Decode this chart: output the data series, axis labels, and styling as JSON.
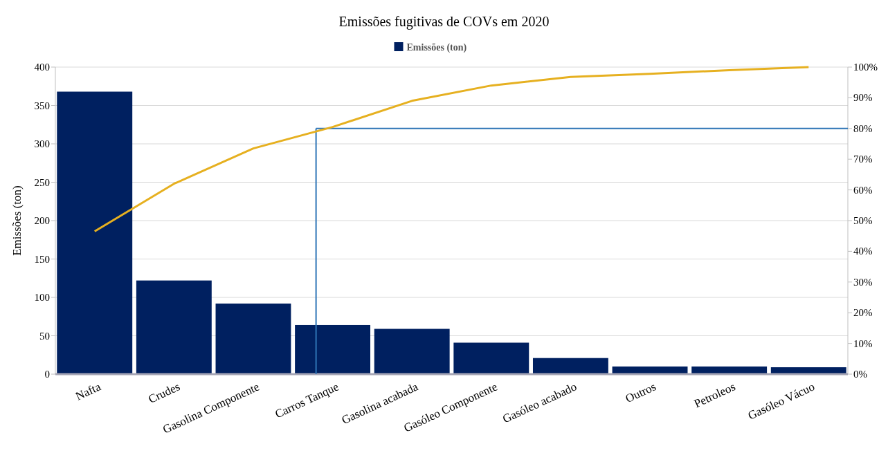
{
  "chart_data": {
    "type": "bar",
    "title": "Emissões fugitivas de COVs em 2020",
    "ylabel": "Emissões (ton)",
    "categories": [
      "Nafta",
      "Crudes",
      "Gasolina Componente",
      "Carros Tanque",
      "Gasolina acabada",
      "Gasóleo Componente",
      "Gasóleo acabado",
      "Outros",
      "Petroleos",
      "Gasóleo Vácuo"
    ],
    "series": [
      {
        "name": "Emissões (ton)",
        "color": "#002060",
        "values": [
          368,
          122,
          92,
          64,
          59,
          41,
          21,
          10,
          10,
          9
        ]
      },
      {
        "type": "line",
        "axis": "y2",
        "color": "#e6b020",
        "values": [
          46.5,
          62,
          73.5,
          80.5,
          89,
          94,
          96.8,
          97.8,
          99,
          100
        ]
      }
    ],
    "ylim": [
      0,
      400
    ],
    "yticks": [
      0,
      50,
      100,
      150,
      200,
      250,
      300,
      350,
      400
    ],
    "y2lim": [
      0,
      100
    ],
    "y2ticks": [
      {
        "value": 0,
        "label": "0%"
      },
      {
        "value": 10,
        "label": "10%"
      },
      {
        "value": 20,
        "label": "20%"
      },
      {
        "value": 30,
        "label": "30%"
      },
      {
        "value": 40,
        "label": "40%"
      },
      {
        "value": 50,
        "label": "50%"
      },
      {
        "value": 60,
        "label": "60%"
      },
      {
        "value": 70,
        "label": "70%"
      },
      {
        "value": 80,
        "label": "80%"
      },
      {
        "value": 90,
        "label": "90%"
      },
      {
        "value": 100,
        "label": "100%"
      }
    ],
    "ref_lines": [
      {
        "axis": "y2",
        "value": 80,
        "color": "#2e75b6"
      },
      {
        "axis": "x",
        "value": "Carros Tanque",
        "color": "#2e75b6"
      }
    ],
    "grid": "y",
    "legend": "top",
    "marker": "none",
    "line_style": "solid"
  }
}
